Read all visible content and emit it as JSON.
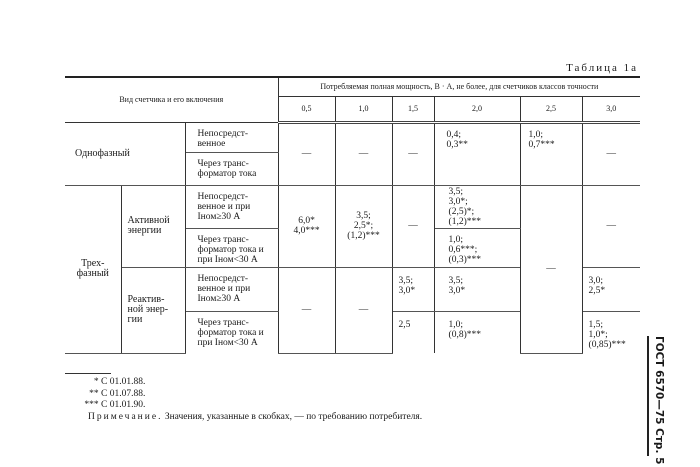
{
  "table_caption": "Таблица 1а",
  "header": {
    "type_col": "Вид счетчика и его включения",
    "power_group": "Потребляемая полная мощность, В · А, не более, для счетчиков классов точности",
    "classes": [
      "0,5",
      "1,0",
      "1,5",
      "2,0",
      "2,5",
      "3,0"
    ]
  },
  "rows": {
    "single_phase": {
      "label": "Однофазный",
      "direct": "Непосредст-\nвенное",
      "ct": "Через транс-\nформатор тока",
      "v05": "—",
      "v10": "—",
      "v15": "—",
      "v20": "0,4;\n0,3**",
      "v25": "1,0;\n0,7***",
      "v30": "—"
    },
    "three_phase": {
      "label": "Трех-\nфазный",
      "active": {
        "label": "Активной\nэнергии",
        "direct": "Непосредст-\nвенное и при\nIном≥30 А",
        "ct": "Через транс-\nформатор тока и\nпри Iном<30 А",
        "v05": "6,0*\n4,0***",
        "v10": "3,5;\n2,5*;\n(1,2)***",
        "v15": "—",
        "v20_direct": "3,5;\n3,0*;\n(2,5)*;\n(1,2)***",
        "v20_ct": "1,0;\n0,6***;\n(0,3)***",
        "v25": "—",
        "v30": "—"
      },
      "reactive": {
        "label": "Реактив-\nной энер-\nгии",
        "direct": "Непосредст-\nвенное и при\nIном≥30 А",
        "ct": "Через транс-\nформатор тока и\nпри Iном<30 А",
        "v05": "—",
        "v10": "—",
        "v15_direct": "3,5;\n3,0*",
        "v15_ct": "2,5",
        "v20_direct": "3,5;\n3,0*",
        "v20_ct": "1,0;\n(0,8)***",
        "v30_direct": "3,0;\n2,5*",
        "v30_ct": "1,5;\n1,0*;\n(0,85)***"
      }
    }
  },
  "footnotes": [
    {
      "mark": "*",
      "text": "С 01.01.88."
    },
    {
      "mark": "**",
      "text": "С 01.07.88."
    },
    {
      "mark": "***",
      "text": "С 01.01.90."
    }
  ],
  "note": {
    "label": "Примечание.",
    "text": " Значения, указанные в скобках, — по требованию потребителя."
  },
  "side_header": "ГОСТ 6570—75 Стр. 5"
}
